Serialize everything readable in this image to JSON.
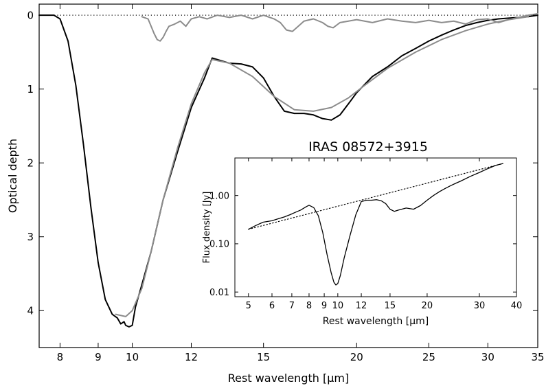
{
  "chart_data": [
    {
      "type": "line",
      "role": "main",
      "title": "",
      "xlabel": "Rest wavelength [μm]",
      "ylabel": "Optical depth",
      "xscale": "log",
      "xlim": [
        7.5,
        35
      ],
      "ylim": [
        4.5,
        -0.15
      ],
      "y_inverted": true,
      "xticks": [
        8,
        9,
        10,
        12,
        15,
        20,
        25,
        30,
        35
      ],
      "yticks": [
        0,
        1,
        2,
        3,
        4
      ],
      "grid": false,
      "reference_line": {
        "y": 0,
        "style": "dotted",
        "color": "#000000"
      },
      "series": [
        {
          "color": "#000000",
          "style": "solid",
          "x": [
            7.5,
            7.7,
            7.85,
            8.0,
            8.2,
            8.4,
            8.6,
            8.8,
            9.0,
            9.2,
            9.4,
            9.55,
            9.65,
            9.75,
            9.8,
            9.9,
            10.0,
            10.1,
            10.3,
            10.6,
            11.0,
            11.5,
            12.0,
            12.5,
            12.8,
            13.2,
            13.5,
            14.0,
            14.5,
            15.0,
            15.5,
            16.0,
            16.5,
            17.0,
            17.5,
            18.0,
            18.5,
            19.0,
            19.5,
            20.0,
            21.0,
            22.0,
            23.0,
            24.0,
            25.0,
            26.0,
            27.0,
            28.0,
            29.0,
            30.0,
            31.0,
            32.0,
            33.0,
            34.0,
            35.0
          ],
          "y": [
            0.0,
            0.0,
            0.0,
            0.05,
            0.35,
            0.95,
            1.75,
            2.6,
            3.35,
            3.85,
            4.05,
            4.1,
            4.18,
            4.15,
            4.2,
            4.22,
            4.2,
            3.95,
            3.65,
            3.2,
            2.5,
            1.85,
            1.25,
            0.85,
            0.58,
            0.62,
            0.65,
            0.66,
            0.7,
            0.85,
            1.1,
            1.3,
            1.33,
            1.33,
            1.35,
            1.4,
            1.42,
            1.35,
            1.2,
            1.05,
            0.83,
            0.7,
            0.55,
            0.45,
            0.35,
            0.27,
            0.2,
            0.14,
            0.1,
            0.07,
            0.05,
            0.04,
            0.03,
            0.02,
            0.0
          ]
        },
        {
          "color": "#8c8c8c",
          "style": "solid",
          "x": [
            9.5,
            9.8,
            10.0,
            10.3,
            10.6,
            11.0,
            11.5,
            12.0,
            12.5,
            12.8,
            13.5,
            14.5,
            15.5,
            16.5,
            17.5,
            18.5,
            19.5,
            20.5,
            22.0,
            24.0,
            26.0,
            28.0,
            30.0,
            32.0,
            34.0
          ],
          "y": [
            4.05,
            4.08,
            4.0,
            3.7,
            3.2,
            2.5,
            1.8,
            1.2,
            0.78,
            0.6,
            0.65,
            0.83,
            1.1,
            1.28,
            1.3,
            1.25,
            1.12,
            0.95,
            0.72,
            0.5,
            0.33,
            0.21,
            0.12,
            0.06,
            0.02
          ]
        },
        {
          "color": "#8c8c8c",
          "style": "solid",
          "x": [
            10.3,
            10.5,
            10.6,
            10.7,
            10.8,
            10.9,
            11.0,
            11.1,
            11.2,
            11.4,
            11.6,
            11.8,
            12.0,
            12.3,
            12.6,
            13.0,
            13.5,
            14.0,
            14.5,
            15.0,
            15.5,
            15.8,
            16.1,
            16.4,
            16.7,
            17.0,
            17.5,
            18.0,
            18.3,
            18.6,
            19.0,
            19.5,
            20.0,
            21.0,
            22.0,
            23.0,
            24.0,
            25.0,
            26.0,
            27.0,
            28.0,
            29.0,
            30.0,
            31.0,
            32.0,
            33.0,
            34.0,
            35.0
          ],
          "y": [
            0.02,
            0.05,
            0.15,
            0.25,
            0.33,
            0.35,
            0.3,
            0.22,
            0.15,
            0.12,
            0.08,
            0.15,
            0.05,
            0.02,
            0.05,
            0.0,
            0.03,
            0.0,
            0.05,
            0.0,
            0.05,
            0.1,
            0.2,
            0.22,
            0.15,
            0.08,
            0.05,
            0.1,
            0.15,
            0.17,
            0.1,
            0.08,
            0.06,
            0.1,
            0.05,
            0.08,
            0.1,
            0.07,
            0.1,
            0.08,
            0.12,
            0.06,
            0.05,
            0.1,
            0.06,
            0.03,
            0.0,
            -0.02
          ]
        }
      ]
    },
    {
      "type": "line",
      "role": "inset",
      "title": "IRAS 08572+3915",
      "xlabel": "Rest wavelength [μm]",
      "ylabel": "Flux density [Jy]",
      "xscale": "log",
      "yscale": "log",
      "xlim": [
        4.5,
        40
      ],
      "ylim": [
        0.008,
        6
      ],
      "xticks": [
        5,
        6,
        7,
        8,
        9,
        10,
        12,
        15,
        20,
        30,
        40
      ],
      "yticks": [
        0.01,
        0.1,
        1.0
      ],
      "ytick_labels": [
        "0.01",
        "0.10",
        "1.00"
      ],
      "grid": false,
      "series": [
        {
          "color": "#000000",
          "style": "solid",
          "x": [
            5.0,
            5.3,
            5.6,
            6.0,
            6.3,
            6.6,
            6.9,
            7.2,
            7.5,
            7.8,
            8.0,
            8.3,
            8.6,
            8.9,
            9.2,
            9.5,
            9.7,
            9.85,
            10.0,
            10.2,
            10.5,
            11.0,
            11.5,
            12.0,
            12.5,
            13.0,
            13.5,
            14.0,
            14.5,
            15.0,
            15.5,
            16.0,
            17.0,
            18.0,
            19.0,
            20.0,
            21.0,
            22.0,
            23.0,
            24.0,
            25.0,
            26.0,
            28.0,
            30.0,
            32.0,
            34.0,
            36.0
          ],
          "y": [
            0.2,
            0.24,
            0.28,
            0.3,
            0.33,
            0.36,
            0.4,
            0.45,
            0.5,
            0.58,
            0.63,
            0.56,
            0.38,
            0.17,
            0.06,
            0.025,
            0.016,
            0.014,
            0.015,
            0.022,
            0.05,
            0.15,
            0.4,
            0.75,
            0.8,
            0.8,
            0.82,
            0.78,
            0.68,
            0.52,
            0.47,
            0.5,
            0.55,
            0.52,
            0.62,
            0.8,
            1.0,
            1.2,
            1.4,
            1.6,
            1.8,
            2.0,
            2.5,
            3.0,
            3.6,
            4.2,
            4.6
          ]
        },
        {
          "color": "#000000",
          "style": "dotted",
          "x": [
            5.0,
            36.0
          ],
          "y": [
            0.2,
            4.6
          ]
        }
      ]
    }
  ]
}
